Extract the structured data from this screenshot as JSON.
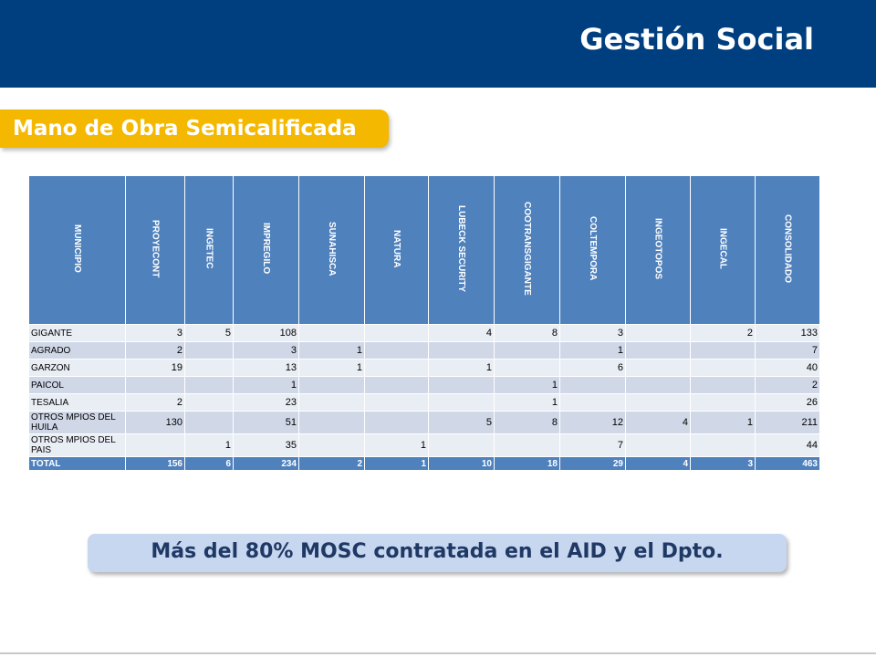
{
  "header": {
    "title": "Gestión Social"
  },
  "section": {
    "label": "Mano de Obra Semicalificada"
  },
  "table": {
    "headers": [
      "MUNICIPIO",
      "PROYECONT",
      "INGETEC",
      "IMPREGILO",
      "SUNAHISCA",
      "NATURA",
      "LUBECK SECURITY",
      "COOTRANSGIGANTE",
      "COLTEMPORA",
      "INGEOTOPOS",
      "INGECAL",
      "CONSOLIDADO"
    ],
    "rows": [
      [
        "GIGANTE",
        "3",
        "5",
        "108",
        "",
        "",
        "4",
        "8",
        "3",
        "",
        "2",
        "133"
      ],
      [
        "AGRADO",
        "2",
        "",
        "3",
        "1",
        "",
        "",
        "",
        "1",
        "",
        "",
        "7"
      ],
      [
        "GARZON",
        "19",
        "",
        "13",
        "1",
        "",
        "1",
        "",
        "6",
        "",
        "",
        "40"
      ],
      [
        "PAICOL",
        "",
        "",
        "1",
        "",
        "",
        "",
        "1",
        "",
        "",
        "",
        "2"
      ],
      [
        "TESALIA",
        "2",
        "",
        "23",
        "",
        "",
        "",
        "1",
        "",
        "",
        "",
        "26"
      ],
      [
        "OTROS MPIOS DEL HUILA",
        "130",
        "",
        "51",
        "",
        "",
        "5",
        "8",
        "12",
        "4",
        "1",
        "211"
      ],
      [
        "OTROS MPIOS DEL PAIS",
        "",
        "1",
        "35",
        "",
        "1",
        "",
        "",
        "7",
        "",
        "",
        "44"
      ]
    ],
    "total": [
      "TOTAL",
      "156",
      "6",
      "234",
      "2",
      "1",
      "10",
      "18",
      "29",
      "4",
      "3",
      "463"
    ]
  },
  "callout": {
    "text": "Más del 80% MOSC contratada en el AID y el Dpto."
  },
  "colors": {
    "header_bg": "#003f7f",
    "section_pill": "#f5b800",
    "table_header": "#4f81bd",
    "row_light": "#e9edf4",
    "row_dark": "#d0d8e8",
    "callout_bg": "#c6d7ef",
    "callout_text": "#1f3864"
  }
}
